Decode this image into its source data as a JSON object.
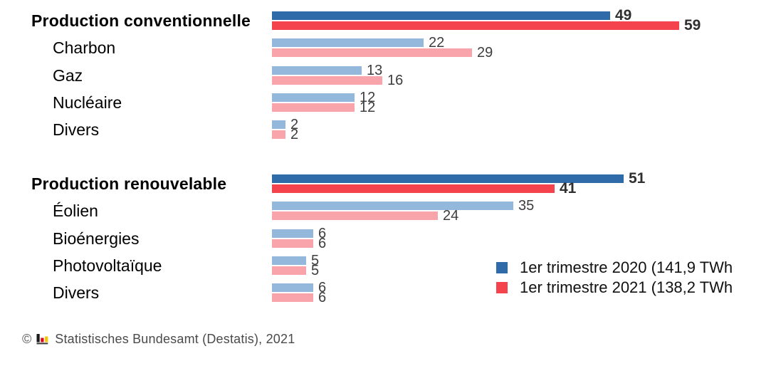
{
  "chart_data": {
    "type": "bar",
    "orientation": "horizontal",
    "value_unit": "TWh",
    "grid": false,
    "xlim": [
      0,
      62
    ],
    "legend_position": "bottom-right",
    "series": [
      {
        "name": "1er trimestre 2020 (141,9 TWh",
        "color": "#2e6ba8",
        "color_light": "#93b8db"
      },
      {
        "name": "1er trimestre 2021 (138,2 TWh",
        "color": "#f5434e",
        "color_light": "#f9a3ab"
      }
    ],
    "rows": [
      {
        "label": "Production conventionnelle",
        "level": "group",
        "values": [
          49,
          59
        ]
      },
      {
        "label": "Charbon",
        "level": "sub",
        "values": [
          22,
          29
        ]
      },
      {
        "label": "Gaz",
        "level": "sub",
        "values": [
          13,
          16
        ]
      },
      {
        "label": "Nucléaire",
        "level": "sub",
        "values": [
          12,
          12
        ]
      },
      {
        "label": "Divers",
        "level": "sub",
        "values": [
          2,
          2
        ]
      },
      {
        "label": "Production renouvelable",
        "level": "group",
        "values": [
          51,
          41
        ]
      },
      {
        "label": "Éolien",
        "level": "sub",
        "values": [
          35,
          24
        ]
      },
      {
        "label": "Bioénergies",
        "level": "sub",
        "values": [
          6,
          6
        ]
      },
      {
        "label": "Photovoltaïque",
        "level": "sub",
        "values": [
          5,
          5
        ]
      },
      {
        "label": "Divers",
        "level": "sub",
        "values": [
          6,
          6
        ]
      }
    ]
  },
  "legend": {
    "items": [
      {
        "label": "1er trimestre 2020 (141,9 TWh"
      },
      {
        "label": "1er trimestre 2021 (138,2 TWh"
      }
    ]
  },
  "footer": {
    "copyright": "©",
    "source": "Statistisches Bundesamt (Destatis), 2021"
  },
  "logo_colors": {
    "black": "#1a1a1a",
    "red": "#e2001a",
    "gold": "#f5c400",
    "baseline": "#3a3a3a"
  }
}
